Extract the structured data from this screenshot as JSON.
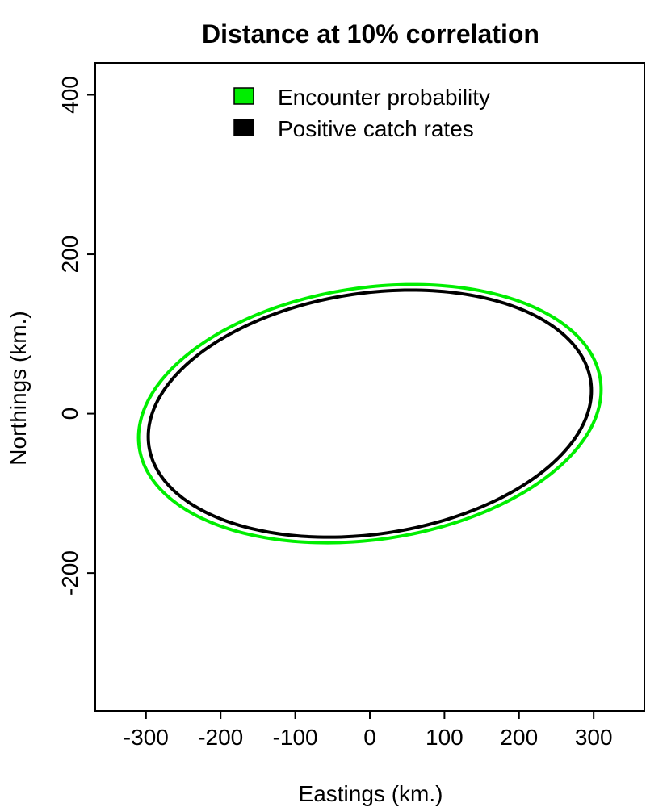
{
  "chart_data": {
    "type": "line",
    "title": "Distance at 10% correlation",
    "xlabel": "Eastings (km.)",
    "ylabel": "Northings (km.)",
    "xlim": [
      -368,
      368
    ],
    "ylim": [
      -373,
      440
    ],
    "xticks": [
      -300,
      -200,
      -100,
      0,
      100,
      200,
      300
    ],
    "yticks": [
      -200,
      0,
      200,
      400
    ],
    "grid": false,
    "legend_position": "top-center",
    "series": [
      {
        "name": "Encounter probability",
        "color": "#00ee00",
        "ellipse": {
          "center": [
            0,
            0
          ],
          "x_extent": 310,
          "y_extent": 162,
          "x_at_ymax": 58,
          "y_at_xmax": 30
        }
      },
      {
        "name": "Positive catch rates",
        "color": "#000000",
        "ellipse": {
          "center": [
            0,
            0
          ],
          "x_extent": 297,
          "y_extent": 155,
          "x_at_ymax": 55,
          "y_at_xmax": 29
        }
      }
    ]
  }
}
